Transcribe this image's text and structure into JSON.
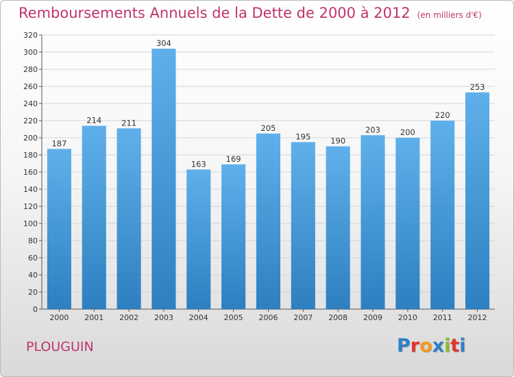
{
  "header": {
    "title": "Remboursements Annuels de la Dette de 2000 à 2012",
    "unit": "(en milliers d'€)"
  },
  "commune": "PLOUGUIN",
  "logo": {
    "letters": [
      "P",
      "r",
      "o",
      "x",
      "i",
      "t",
      "i"
    ],
    "colors": [
      "#2f7fc6",
      "#e2342b",
      "#f39a1e",
      "#2f7fc6",
      "#8cbd2f",
      "#e2342b",
      "#2f7fc6"
    ]
  },
  "colors": {
    "bar_light": "#5fb0ea",
    "bar_dark": "#2d7fc0",
    "title": "#c0336b"
  },
  "chart_data": {
    "type": "bar",
    "title": "Remboursements Annuels de la Dette de 2000 à 2012",
    "xlabel": "",
    "ylabel": "",
    "categories": [
      "2000",
      "2001",
      "2002",
      "2003",
      "2004",
      "2005",
      "2006",
      "2007",
      "2008",
      "2009",
      "2010",
      "2011",
      "2012"
    ],
    "values": [
      187,
      214,
      211,
      304,
      163,
      169,
      205,
      195,
      190,
      203,
      200,
      220,
      253
    ],
    "ylim": [
      0,
      320
    ],
    "yticks": [
      0,
      20,
      40,
      60,
      80,
      100,
      120,
      140,
      160,
      180,
      200,
      220,
      240,
      260,
      280,
      300,
      320
    ],
    "grid": true,
    "legend": "none"
  }
}
